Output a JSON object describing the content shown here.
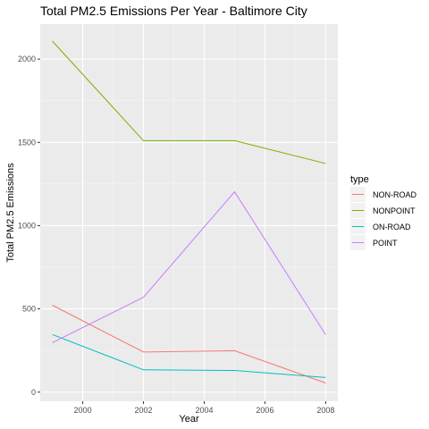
{
  "chart_data": {
    "type": "line",
    "title": "Total PM2.5 Emissions Per Year - Baltimore City",
    "xlabel": "Year",
    "ylabel": "Total PM2.5 Emissions",
    "x": [
      1999,
      2002,
      2005,
      2008
    ],
    "xlim": [
      1998.6,
      2008.4
    ],
    "ylim": [
      -55,
      2210
    ],
    "xticks": [
      2000,
      2002,
      2004,
      2006,
      2008
    ],
    "xtick_labels": [
      "2000",
      "2002",
      "2004",
      "2006",
      "2008"
    ],
    "yticks": [
      0,
      500,
      1000,
      1500,
      2000
    ],
    "ytick_labels": [
      "0",
      "500",
      "1000",
      "1500",
      "2000"
    ],
    "grid": true,
    "legend": {
      "title": "type",
      "position": "right"
    },
    "series": [
      {
        "name": "NON-ROAD",
        "color": "#F8766D",
        "values": [
          522,
          241,
          249,
          55
        ]
      },
      {
        "name": "NONPOINT",
        "color": "#7CAE00",
        "values": [
          2108,
          1510,
          1510,
          1373
        ]
      },
      {
        "name": "ON-ROAD",
        "color": "#00BFC4",
        "values": [
          346,
          134,
          130,
          88
        ]
      },
      {
        "name": "POINT",
        "color": "#C77CFF",
        "values": [
          297,
          570,
          1203,
          345
        ]
      }
    ]
  }
}
